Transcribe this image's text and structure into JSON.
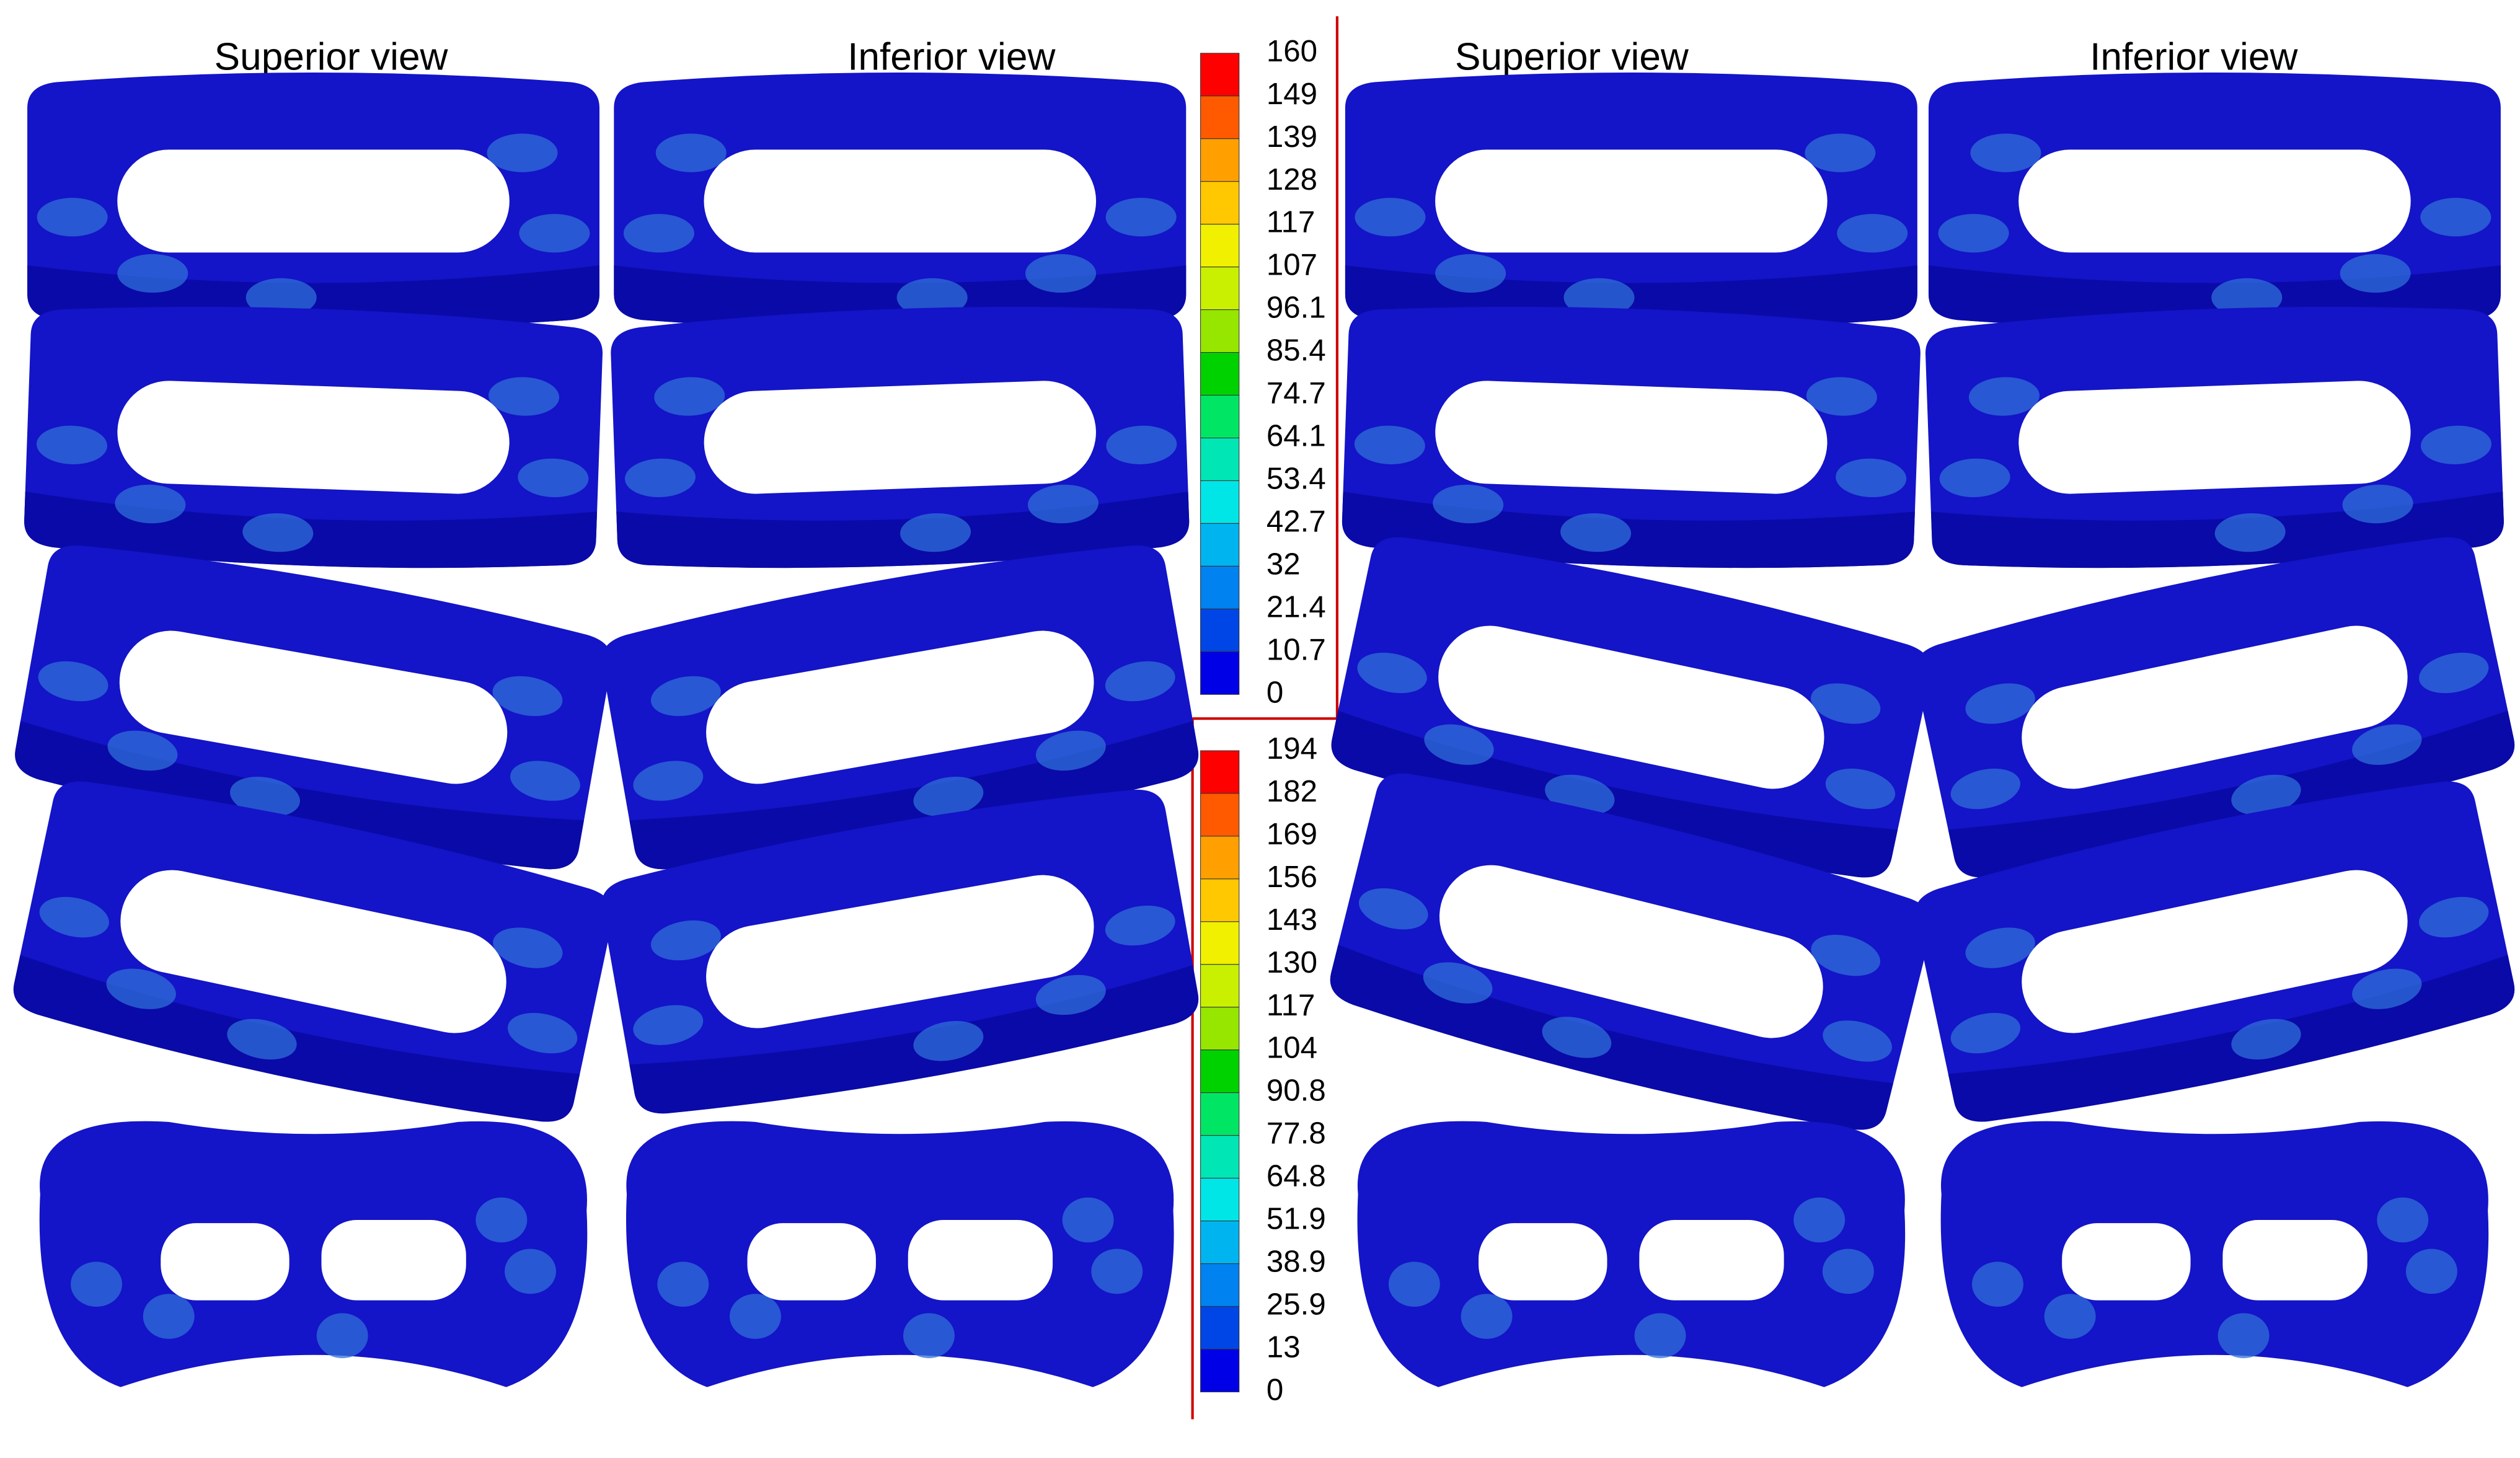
{
  "headers": [
    "Superior view",
    "Inferior view",
    "Superior view",
    "Inferior view"
  ],
  "colorbars": [
    {
      "labels": [
        160,
        149,
        139,
        128,
        117,
        107,
        96.1,
        85.4,
        74.7,
        64.1,
        53.4,
        42.7,
        32,
        21.4,
        10.7,
        0
      ]
    },
    {
      "labels": [
        194,
        182,
        169,
        156,
        143,
        130,
        117,
        104,
        90.8,
        77.8,
        64.8,
        51.9,
        38.9,
        25.9,
        13,
        0
      ]
    }
  ],
  "colors": [
    "#ff0000",
    "#ff5a00",
    "#ffa000",
    "#ffc800",
    "#f0f000",
    "#c8f000",
    "#96e600",
    "#00d200",
    "#00e664",
    "#00e6b4",
    "#00e6e6",
    "#00b4f0",
    "#0082f0",
    "#0046e6",
    "#0000e6"
  ]
}
